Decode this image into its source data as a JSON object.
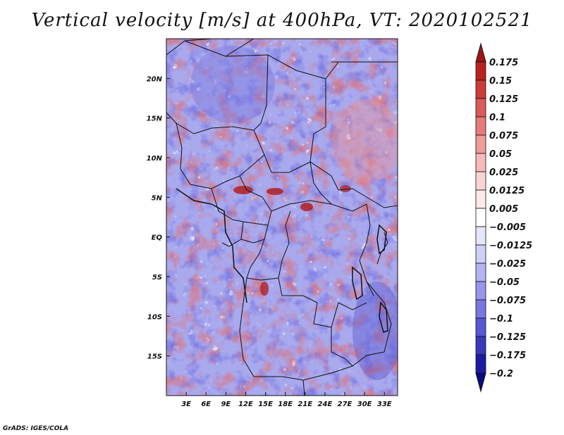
{
  "title": "Vertical velocity [m/s] at 400hPa, VT: 2020102521",
  "credit": "GrADS: IGES/COLA",
  "map": {
    "lon_range": [
      0,
      35
    ],
    "lat_range": [
      -20,
      25
    ],
    "lon_ticks": [
      "3E",
      "6E",
      "9E",
      "12E",
      "15E",
      "18E",
      "21E",
      "24E",
      "27E",
      "30E",
      "33E"
    ],
    "lat_ticks": [
      "20N",
      "15N",
      "10N",
      "5N",
      "EQ",
      "5S",
      "10S",
      "15S"
    ]
  },
  "colorbar": {
    "labels": [
      "0.175",
      "0.15",
      "0.125",
      "0.1",
      "0.075",
      "0.05",
      "0.025",
      "0.0125",
      "0.005",
      "−0.005",
      "−0.0125",
      "−0.025",
      "−0.05",
      "−0.075",
      "−0.1",
      "−0.125",
      "−0.175",
      "−0.2"
    ],
    "colors": [
      "#a01414",
      "#bb2020",
      "#cd3a3a",
      "#dc5a5a",
      "#e77a7a",
      "#f09a9a",
      "#f6baba",
      "#f9d4d4",
      "#fde9e9",
      "#ffffff",
      "#e6e6fb",
      "#cfcff7",
      "#b4b4f2",
      "#9696ec",
      "#7878e2",
      "#5858d4",
      "#3838bd",
      "#1c1ca3",
      "#0a0a80"
    ]
  }
}
